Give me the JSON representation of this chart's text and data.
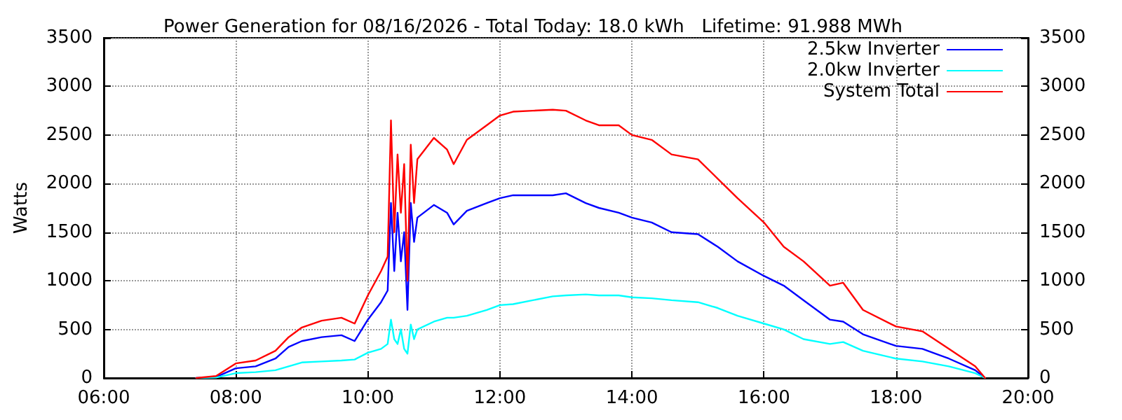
{
  "chart_data": {
    "type": "line",
    "title": "Power Generation for 08/16/2026 - Total Today: 18.0 kWh   Lifetime: 91.988 MWh",
    "ylabel": "Watts",
    "x": [
      7.4,
      7.7,
      8.0,
      8.3,
      8.6,
      8.8,
      9.0,
      9.3,
      9.6,
      9.8,
      10.0,
      10.2,
      10.3,
      10.35,
      10.4,
      10.45,
      10.5,
      10.55,
      10.6,
      10.65,
      10.7,
      10.75,
      11.0,
      11.2,
      11.3,
      11.5,
      11.8,
      12.0,
      12.2,
      12.5,
      12.8,
      13.0,
      13.3,
      13.5,
      13.8,
      14.0,
      14.3,
      14.6,
      15.0,
      15.3,
      15.6,
      16.0,
      16.3,
      16.6,
      17.0,
      17.2,
      17.5,
      18.0,
      18.4,
      18.8,
      19.2,
      19.35
    ],
    "series": [
      {
        "name": "2.5kw Inverter",
        "color": "#0000ff",
        "values": [
          0,
          10,
          100,
          120,
          200,
          320,
          380,
          420,
          440,
          380,
          600,
          780,
          900,
          1800,
          1100,
          1700,
          1200,
          1500,
          700,
          1800,
          1400,
          1650,
          1780,
          1700,
          1580,
          1720,
          1800,
          1850,
          1880,
          1880,
          1880,
          1900,
          1800,
          1750,
          1700,
          1650,
          1600,
          1500,
          1480,
          1350,
          1200,
          1050,
          950,
          800,
          600,
          580,
          450,
          330,
          300,
          200,
          80,
          0
        ]
      },
      {
        "name": "2.0kw Inverter",
        "color": "#00ffff",
        "values": [
          0,
          5,
          50,
          60,
          80,
          120,
          160,
          170,
          180,
          190,
          260,
          300,
          350,
          600,
          400,
          350,
          500,
          300,
          250,
          550,
          400,
          500,
          580,
          620,
          620,
          640,
          700,
          750,
          760,
          800,
          840,
          850,
          860,
          850,
          850,
          830,
          820,
          800,
          780,
          720,
          640,
          560,
          500,
          400,
          350,
          370,
          280,
          200,
          170,
          120,
          50,
          0
        ]
      },
      {
        "name": "System Total",
        "color": "#ff0000",
        "values": [
          0,
          20,
          150,
          180,
          280,
          420,
          520,
          590,
          620,
          560,
          850,
          1100,
          1250,
          2650,
          1500,
          2300,
          1700,
          2200,
          1000,
          2400,
          1800,
          2250,
          2470,
          2350,
          2200,
          2450,
          2600,
          2700,
          2740,
          2750,
          2760,
          2750,
          2650,
          2600,
          2600,
          2500,
          2450,
          2300,
          2250,
          2050,
          1850,
          1600,
          1350,
          1200,
          950,
          980,
          700,
          530,
          480,
          300,
          120,
          0
        ]
      }
    ],
    "xlim": [
      6,
      20
    ],
    "xticks": [
      {
        "value": 6,
        "label": "06:00"
      },
      {
        "value": 8,
        "label": "08:00"
      },
      {
        "value": 10,
        "label": "10:00"
      },
      {
        "value": 12,
        "label": "12:00"
      },
      {
        "value": 14,
        "label": "14:00"
      },
      {
        "value": 16,
        "label": "16:00"
      },
      {
        "value": 18,
        "label": "18:00"
      },
      {
        "value": 20,
        "label": "20:00"
      }
    ],
    "ylim": [
      0,
      3500
    ],
    "yticks": [
      0,
      500,
      1000,
      1500,
      2000,
      2500,
      3000,
      3500
    ],
    "y2lim": [
      0,
      3500
    ],
    "y2ticks": [
      0,
      500,
      1000,
      1500,
      2000,
      2500,
      3000,
      3500
    ],
    "grid": true,
    "legend": "top right",
    "marker": "none",
    "line_style": "solid"
  }
}
